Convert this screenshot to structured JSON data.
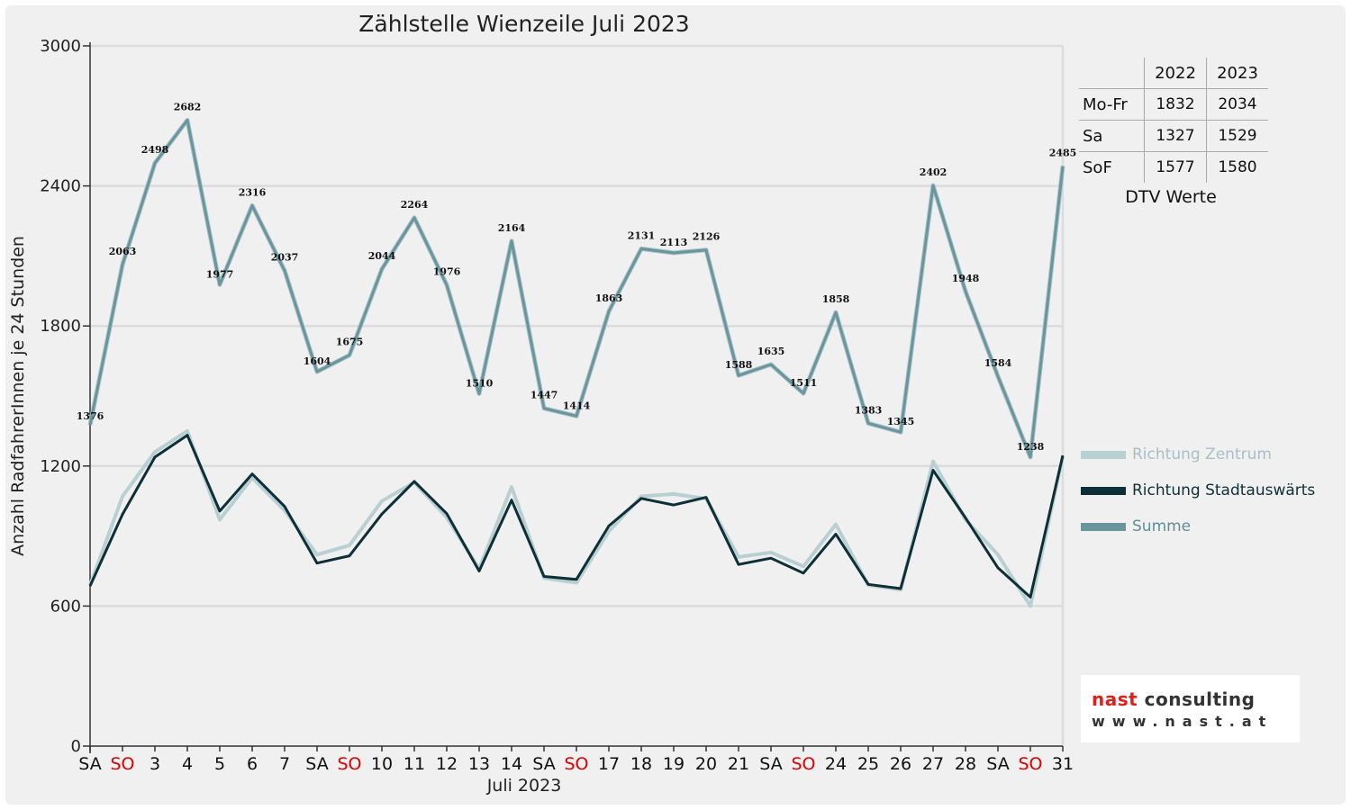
{
  "chart_data": {
    "type": "line",
    "title": "Zählstelle Wienzeile Juli 2023",
    "xlabel": "Juli 2023",
    "ylabel": "Anzahl RadfahrerInnen je 24 Stunden",
    "ylim": [
      0,
      3000
    ],
    "yticks": [
      0,
      600,
      1200,
      1800,
      2400,
      3000
    ],
    "grid": true,
    "legend_position": "right",
    "categories": [
      "SA",
      "SO",
      "3",
      "4",
      "5",
      "6",
      "7",
      "SA",
      "SO",
      "10",
      "11",
      "12",
      "13",
      "14",
      "SA",
      "SO",
      "17",
      "18",
      "19",
      "20",
      "21",
      "SA",
      "SO",
      "24",
      "25",
      "26",
      "27",
      "28",
      "SA",
      "SO",
      "31"
    ],
    "series": [
      {
        "name": "Richtung Zentrum",
        "color": "#b9d0d3",
        "values": [
          690,
          1070,
          1260,
          1350,
          970,
          1150,
          1010,
          820,
          860,
          1050,
          1130,
          980,
          760,
          1110,
          720,
          700,
          920,
          1070,
          1080,
          1060,
          810,
          830,
          770,
          950,
          690,
          670,
          1220,
          970,
          820,
          600,
          1240
        ]
      },
      {
        "name": "Richtung Stadtauswärts",
        "color": "#0d3038",
        "values": [
          686,
          993,
          1238,
          1332,
          1007,
          1166,
          1027,
          784,
          815,
          994,
          1134,
          996,
          750,
          1054,
          727,
          714,
          943,
          1061,
          1033,
          1066,
          778,
          805,
          741,
          908,
          693,
          675,
          1182,
          978,
          764,
          638,
          1245
        ]
      },
      {
        "name": "Summe",
        "color": "#6a959d",
        "values": [
          1376,
          2063,
          2498,
          2682,
          1977,
          2316,
          2037,
          1604,
          1675,
          2044,
          2264,
          1976,
          1510,
          2164,
          1447,
          1414,
          1863,
          2131,
          2113,
          2126,
          1588,
          1635,
          1511,
          1858,
          1383,
          1345,
          2402,
          1948,
          1584,
          1238,
          2485
        ]
      }
    ],
    "weekend_label_color": "#dd0000"
  },
  "dtv_table": {
    "headers": [
      "2022",
      "2023"
    ],
    "rows": [
      {
        "label": "Mo-Fr",
        "v2022": "1832",
        "v2023": "2034"
      },
      {
        "label": "Sa",
        "v2022": "1327",
        "v2023": "1529"
      },
      {
        "label": "SoF",
        "v2022": "1577",
        "v2023": "1580"
      }
    ],
    "caption": "DTV Werte"
  },
  "logo": {
    "part1": "nast",
    "part2": " consulting",
    "url": "www.nast.at"
  }
}
